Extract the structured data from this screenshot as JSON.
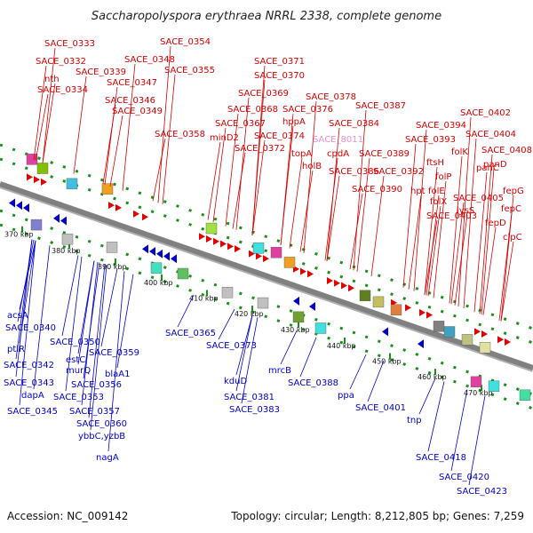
{
  "title": "Saccharopolyspora erythraea NRRL 2338, complete genome",
  "footer": {
    "accession": "Accession: NC_009142",
    "summary": "Topology: circular; Length: 8,212,805 bp; Genes: 7,259"
  },
  "colors": {
    "top_labels": "#d40000",
    "bottom_labels": "#0000c8",
    "highlight_label": "#e890c8",
    "forward_genes": "#e00000",
    "reverse_genes": "#0000c8",
    "ticks": "#1a8f1a",
    "backbone": "#808080"
  },
  "top_labels": [
    "SACE_0333",
    "SACE_0332",
    "nth",
    "SACE_0334",
    "SACE_0339",
    "SACE_0354",
    "SACE_0348",
    "SACE_0347",
    "SACE_0355",
    "SACE_0346",
    "SACE_0349",
    "SACE_0358",
    "SACE_0371",
    "SACE_0370",
    "SACE_0369",
    "SACE_0368",
    "SACE_0367",
    "minD2",
    "SACE_0372",
    "SACE_0374",
    "SACE_0376",
    "hppA",
    "SACE_0378",
    "SACE_0384",
    "SACE_0387",
    "topA",
    "holB",
    "cpdA",
    "SACE_0386",
    "SACE_0389",
    "SACE_0390",
    "SACE_0392",
    "SACE_0393",
    "SACE_0394",
    "SACE_0402",
    "SACE_0404",
    "SACE_0408",
    "ftsH",
    "folK",
    "hpt",
    "folP",
    "folE",
    "folX",
    "SACE_0403",
    "SACE_0405",
    "panC",
    "panD",
    "lysS",
    "fepG",
    "fepC",
    "fepD",
    "clpC"
  ],
  "highlight_label": "SACE_8011",
  "kbp_labels": [
    "370 kbp",
    "380 kbp",
    "390 kbp",
    "400 kbp",
    "410 kbp",
    "420 kbp",
    "430 kbp",
    "440 kbp",
    "450 kbp",
    "460 kbp",
    "470 kbp"
  ],
  "bottom_labels": [
    "acsA",
    "SACE_0340",
    "ptlR",
    "SACE_0342",
    "SACE_0343",
    "dapA",
    "SACE_0345",
    "SACE_0350",
    "estC",
    "murQ",
    "SACE_0353",
    "SACE_0356",
    "SACE_0357",
    "SACE_0359",
    "blaA1",
    "SACE_0360",
    "ybbC,yzbB",
    "nagA",
    "SACE_0365",
    "SACE_0373",
    "kduD",
    "SACE_0381",
    "SACE_0383",
    "mrcB",
    "SACE_0388",
    "ppa",
    "SACE_0401",
    "tnp",
    "SACE_0418",
    "SACE_0420",
    "SACE_0423"
  ]
}
